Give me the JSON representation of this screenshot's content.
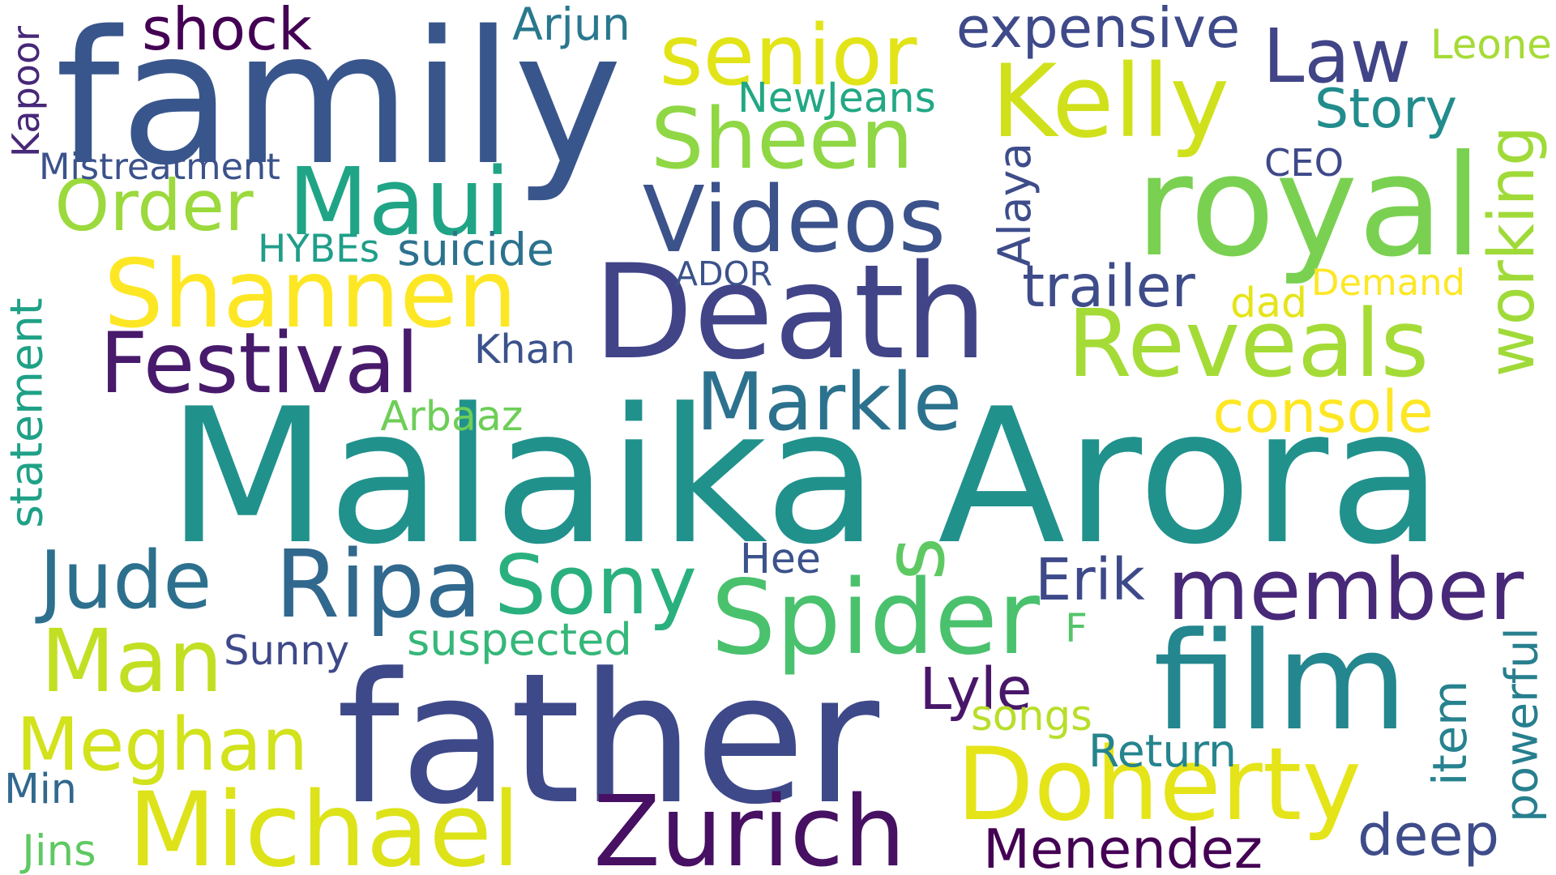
{
  "words": [
    {
      "text": "Malaika Arora",
      "color": "#21918c",
      "rotated": false
    },
    {
      "text": "family",
      "color": "#39568c",
      "rotated": false
    },
    {
      "text": "father",
      "color": "#3e4989",
      "rotated": false
    },
    {
      "text": "Death",
      "color": "#414487",
      "rotated": false
    },
    {
      "text": "royal",
      "color": "#7ad151",
      "rotated": false
    },
    {
      "text": "film",
      "color": "#24868e",
      "rotated": false
    },
    {
      "text": "Zurich",
      "color": "#471063",
      "rotated": false
    },
    {
      "text": "Michael",
      "color": "#dde318",
      "rotated": false
    },
    {
      "text": "Shannen",
      "color": "#fde725",
      "rotated": false
    },
    {
      "text": "Kelly",
      "color": "#d0e11c",
      "rotated": false
    },
    {
      "text": "Videos",
      "color": "#3b528b",
      "rotated": false
    },
    {
      "text": "Spider",
      "color": "#4ac16d",
      "rotated": false
    },
    {
      "text": "Reveals",
      "color": "#a5db36",
      "rotated": false
    },
    {
      "text": "member",
      "color": "#482878",
      "rotated": false
    },
    {
      "text": "Doherty",
      "color": "#e5e419",
      "rotated": false
    },
    {
      "text": "Ripa",
      "color": "#31688e",
      "rotated": false
    },
    {
      "text": "Man",
      "color": "#c2df23",
      "rotated": false
    },
    {
      "text": "Maui",
      "color": "#20a486",
      "rotated": false
    },
    {
      "text": "senior",
      "color": "#e2e418",
      "rotated": false
    },
    {
      "text": "Sheen",
      "color": "#8fd744",
      "rotated": false
    },
    {
      "text": "Festival",
      "color": "#481a6c",
      "rotated": false
    },
    {
      "text": "Sony",
      "color": "#2ab07f",
      "rotated": false
    },
    {
      "text": "Meghan",
      "color": "#d2e21b",
      "rotated": false
    },
    {
      "text": "Jude",
      "color": "#2d708e",
      "rotated": false
    },
    {
      "text": "Markle",
      "color": "#2c728e",
      "rotated": false
    },
    {
      "text": "s",
      "color": "#5ec962",
      "rotated": true
    },
    {
      "text": "Order",
      "color": "#9bd93c",
      "rotated": false
    },
    {
      "text": "working",
      "color": "#a0da39",
      "rotated": true
    },
    {
      "text": "Law",
      "color": "#414487",
      "rotated": false
    },
    {
      "text": "Menendez",
      "color": "#440154",
      "rotated": false
    },
    {
      "text": "expensive",
      "color": "#3e4a89",
      "rotated": false
    },
    {
      "text": "powerful",
      "color": "#277f8e",
      "rotated": true
    },
    {
      "text": "console",
      "color": "#fde725",
      "rotated": false
    },
    {
      "text": "trailer",
      "color": "#3e4c8a",
      "rotated": false
    },
    {
      "text": "statement",
      "color": "#1fa187",
      "rotated": true
    },
    {
      "text": "Story",
      "color": "#228c8d",
      "rotated": false
    },
    {
      "text": "deep",
      "color": "#3e4c8a",
      "rotated": false
    },
    {
      "text": "Erik",
      "color": "#3e4989",
      "rotated": false
    },
    {
      "text": "Lyle",
      "color": "#481769",
      "rotated": false
    },
    {
      "text": "shock",
      "color": "#440154",
      "rotated": false
    },
    {
      "text": "Khan",
      "color": "#3b528b",
      "rotated": false
    },
    {
      "text": "suspected",
      "color": "#35b779",
      "rotated": false
    },
    {
      "text": "Sunny",
      "color": "#3e4989",
      "rotated": false
    },
    {
      "text": "Arbaaz",
      "color": "#6ece58",
      "rotated": false
    },
    {
      "text": "Return",
      "color": "#25848e",
      "rotated": false
    },
    {
      "text": "Demand",
      "color": "#fde725",
      "rotated": false
    },
    {
      "text": "suicide",
      "color": "#2c728e",
      "rotated": false
    },
    {
      "text": "item",
      "color": "#26828e",
      "rotated": true
    },
    {
      "text": "Hee",
      "color": "#3b528b",
      "rotated": false
    },
    {
      "text": "Min",
      "color": "#31688e",
      "rotated": false
    },
    {
      "text": "Jins",
      "color": "#5ec962",
      "rotated": false
    },
    {
      "text": "Arjun",
      "color": "#2a788e",
      "rotated": false
    },
    {
      "text": "Kapoor",
      "color": "#482878",
      "rotated": true
    },
    {
      "text": "NewJeans",
      "color": "#22a884",
      "rotated": false
    },
    {
      "text": "Mistreatment",
      "color": "#3b528b",
      "rotated": false
    },
    {
      "text": "HYBEs",
      "color": "#1f9e89",
      "rotated": false
    },
    {
      "text": "ADOR",
      "color": "#3b528b",
      "rotated": false
    },
    {
      "text": "Alaya",
      "color": "#3e4c8a",
      "rotated": true
    },
    {
      "text": "CEO",
      "color": "#3e4989",
      "rotated": false
    },
    {
      "text": "Leone",
      "color": "#a5db36",
      "rotated": false
    },
    {
      "text": "dad",
      "color": "#e5e419",
      "rotated": false
    },
    {
      "text": "F",
      "color": "#52c569",
      "rotated": false
    },
    {
      "text": "songs",
      "color": "#b8de29",
      "rotated": false
    }
  ]
}
